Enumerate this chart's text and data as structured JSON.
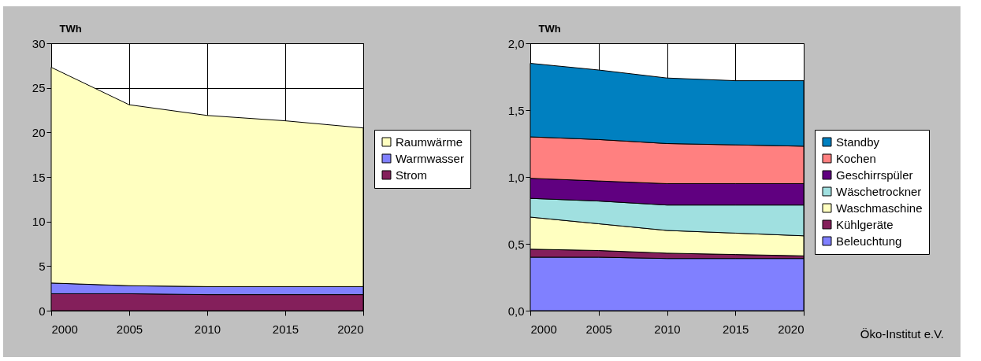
{
  "chart_data": [
    {
      "type": "area",
      "ylabel": "TWh",
      "x": [
        2000,
        2005,
        2010,
        2015,
        2020
      ],
      "stacked": true,
      "series": [
        {
          "name": "Strom",
          "color": "#841f5b",
          "values": [
            1.9,
            1.9,
            1.8,
            1.8,
            1.8
          ]
        },
        {
          "name": "Warmwasser",
          "color": "#8080ff",
          "values": [
            1.2,
            0.9,
            0.9,
            0.9,
            0.9
          ]
        },
        {
          "name": "Raumwärme",
          "color": "#ffffc0",
          "values": [
            24.2,
            20.3,
            19.2,
            18.6,
            17.8
          ]
        }
      ],
      "xlim": [
        2000,
        2020
      ],
      "xticks": [
        2000,
        2005,
        2010,
        2015,
        2020
      ],
      "ylim": [
        0,
        30
      ],
      "yticks": [
        0,
        5,
        10,
        15,
        20,
        25,
        30
      ],
      "grid": true,
      "legend": "right"
    },
    {
      "type": "area",
      "ylabel": "TWh",
      "x": [
        2000,
        2005,
        2010,
        2015,
        2020
      ],
      "stacked": true,
      "series": [
        {
          "name": "Beleuchtung",
          "color": "#8080ff",
          "values": [
            0.4,
            0.4,
            0.39,
            0.39,
            0.39
          ]
        },
        {
          "name": "Kühlgeräte",
          "color": "#841f5b",
          "values": [
            0.06,
            0.05,
            0.04,
            0.03,
            0.02
          ]
        },
        {
          "name": "Waschmaschine",
          "color": "#ffffc0",
          "values": [
            0.24,
            0.2,
            0.17,
            0.16,
            0.15
          ]
        },
        {
          "name": "Wäschetrockner",
          "color": "#a0e0e0",
          "values": [
            0.14,
            0.17,
            0.19,
            0.21,
            0.23
          ]
        },
        {
          "name": "Geschirrspüler",
          "color": "#600080",
          "values": [
            0.15,
            0.15,
            0.16,
            0.16,
            0.16
          ]
        },
        {
          "name": "Kochen",
          "color": "#ff8080",
          "values": [
            0.31,
            0.31,
            0.3,
            0.29,
            0.28
          ]
        },
        {
          "name": "Standby",
          "color": "#0080c0",
          "values": [
            0.55,
            0.52,
            0.49,
            0.48,
            0.49
          ]
        }
      ],
      "xlim": [
        2000,
        2020
      ],
      "xticks": [
        2000,
        2005,
        2010,
        2015,
        2020
      ],
      "ylim": [
        0,
        2
      ],
      "yticks": [
        {
          "value": 0,
          "label": "0,0"
        },
        {
          "value": 0.5,
          "label": "0,5"
        },
        {
          "value": 1,
          "label": "1,0"
        },
        {
          "value": 1.5,
          "label": "1,5"
        },
        {
          "value": 2,
          "label": "2,0"
        }
      ],
      "grid": true,
      "legend": "right",
      "annotations": [
        "Öko-Institut e.V."
      ]
    }
  ]
}
